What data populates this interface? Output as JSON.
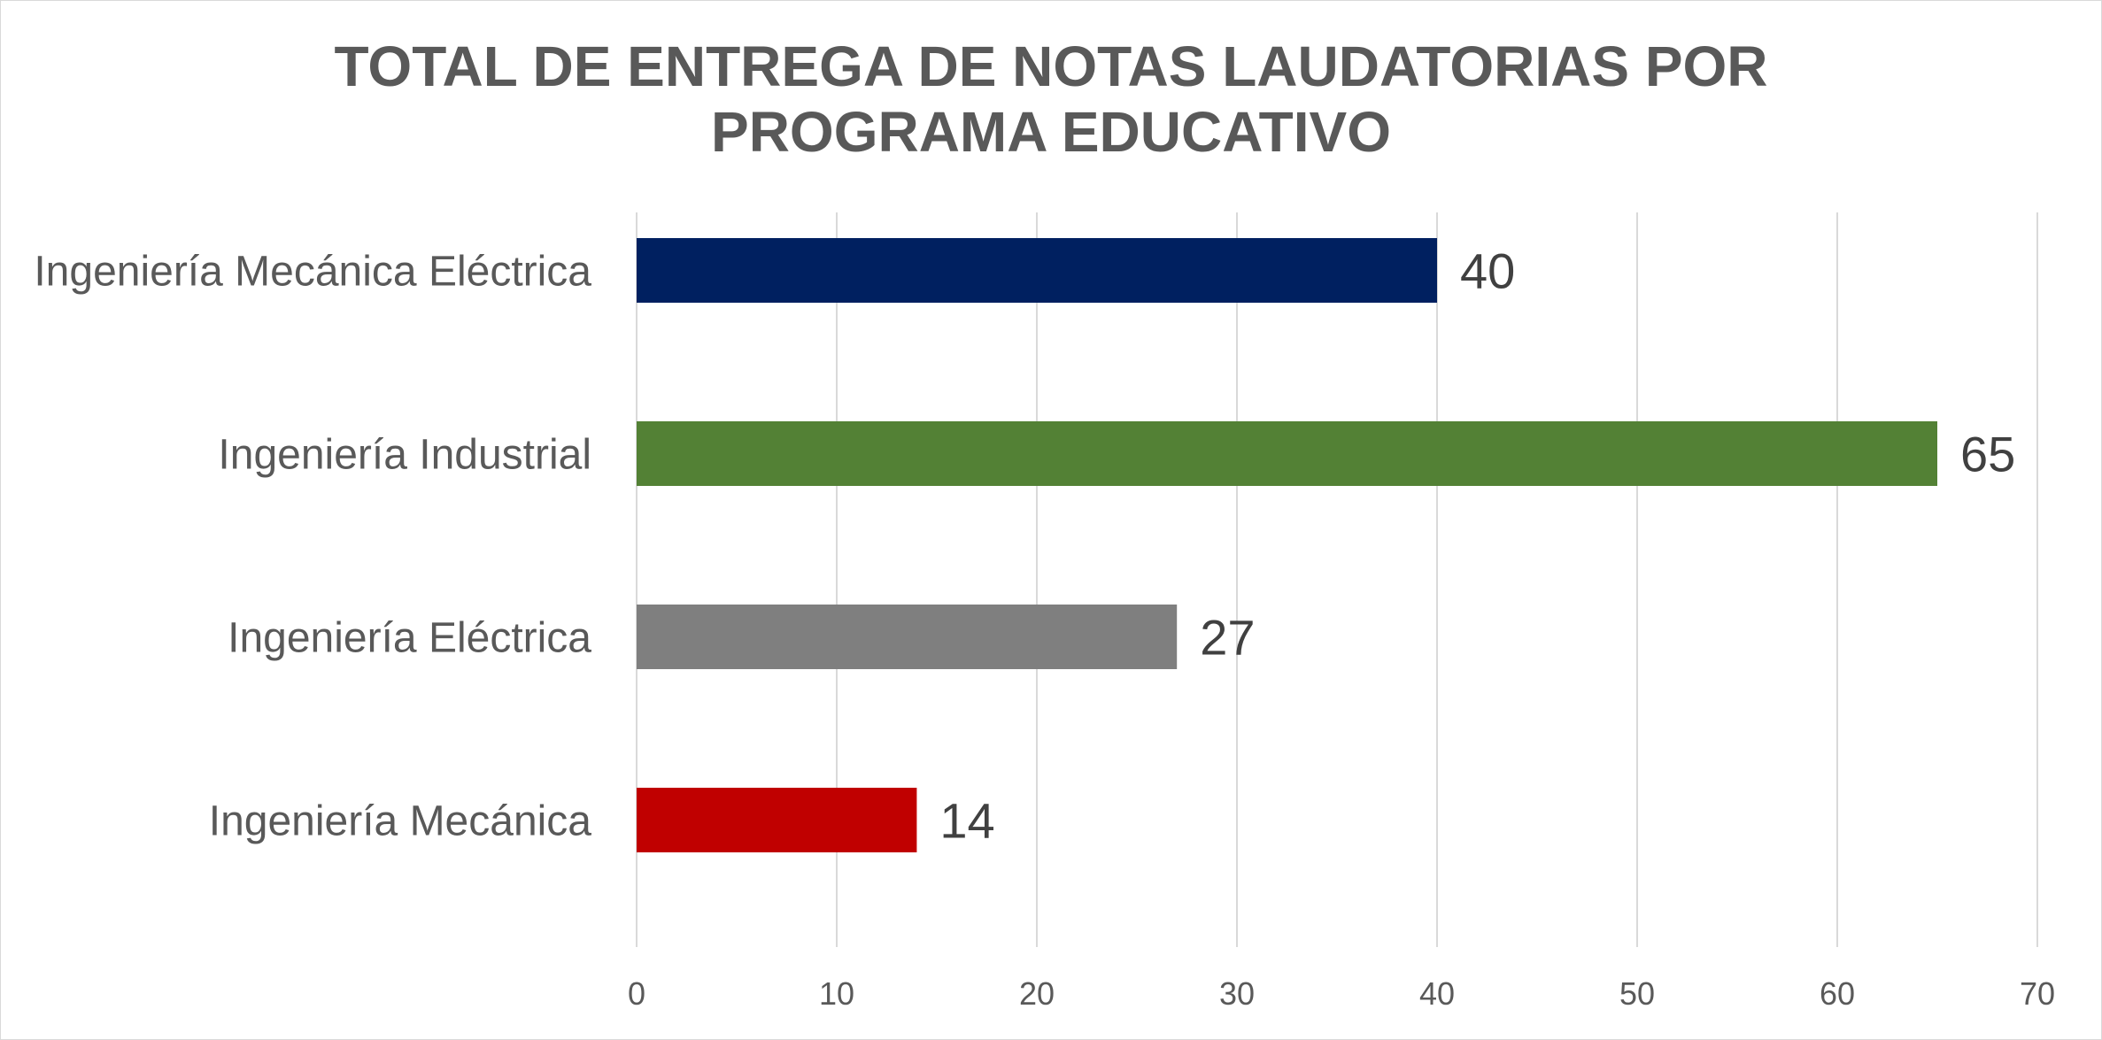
{
  "chart_data": {
    "type": "bar",
    "orientation": "horizontal",
    "title": "TOTAL DE ENTREGA DE NOTAS LAUDATORIAS POR PROGRAMA EDUCATIVO",
    "title_lines": [
      "TOTAL DE ENTREGA DE NOTAS LAUDATORIAS POR",
      "PROGRAMA EDUCATIVO"
    ],
    "categories": [
      "Ingeniería Mecánica Eléctrica",
      "Ingeniería Industrial",
      "Ingeniería Eléctrica",
      "Ingeniería Mecánica"
    ],
    "values": [
      40,
      65,
      27,
      14
    ],
    "colors": [
      "#002060",
      "#538135",
      "#7f7f7f",
      "#c00000"
    ],
    "xlim": [
      0,
      70
    ],
    "xticks": [
      0,
      10,
      20,
      30,
      40,
      50,
      60,
      70
    ],
    "xlabel": "",
    "ylabel": "",
    "grid": true,
    "legend": "none",
    "data_labels": true
  }
}
